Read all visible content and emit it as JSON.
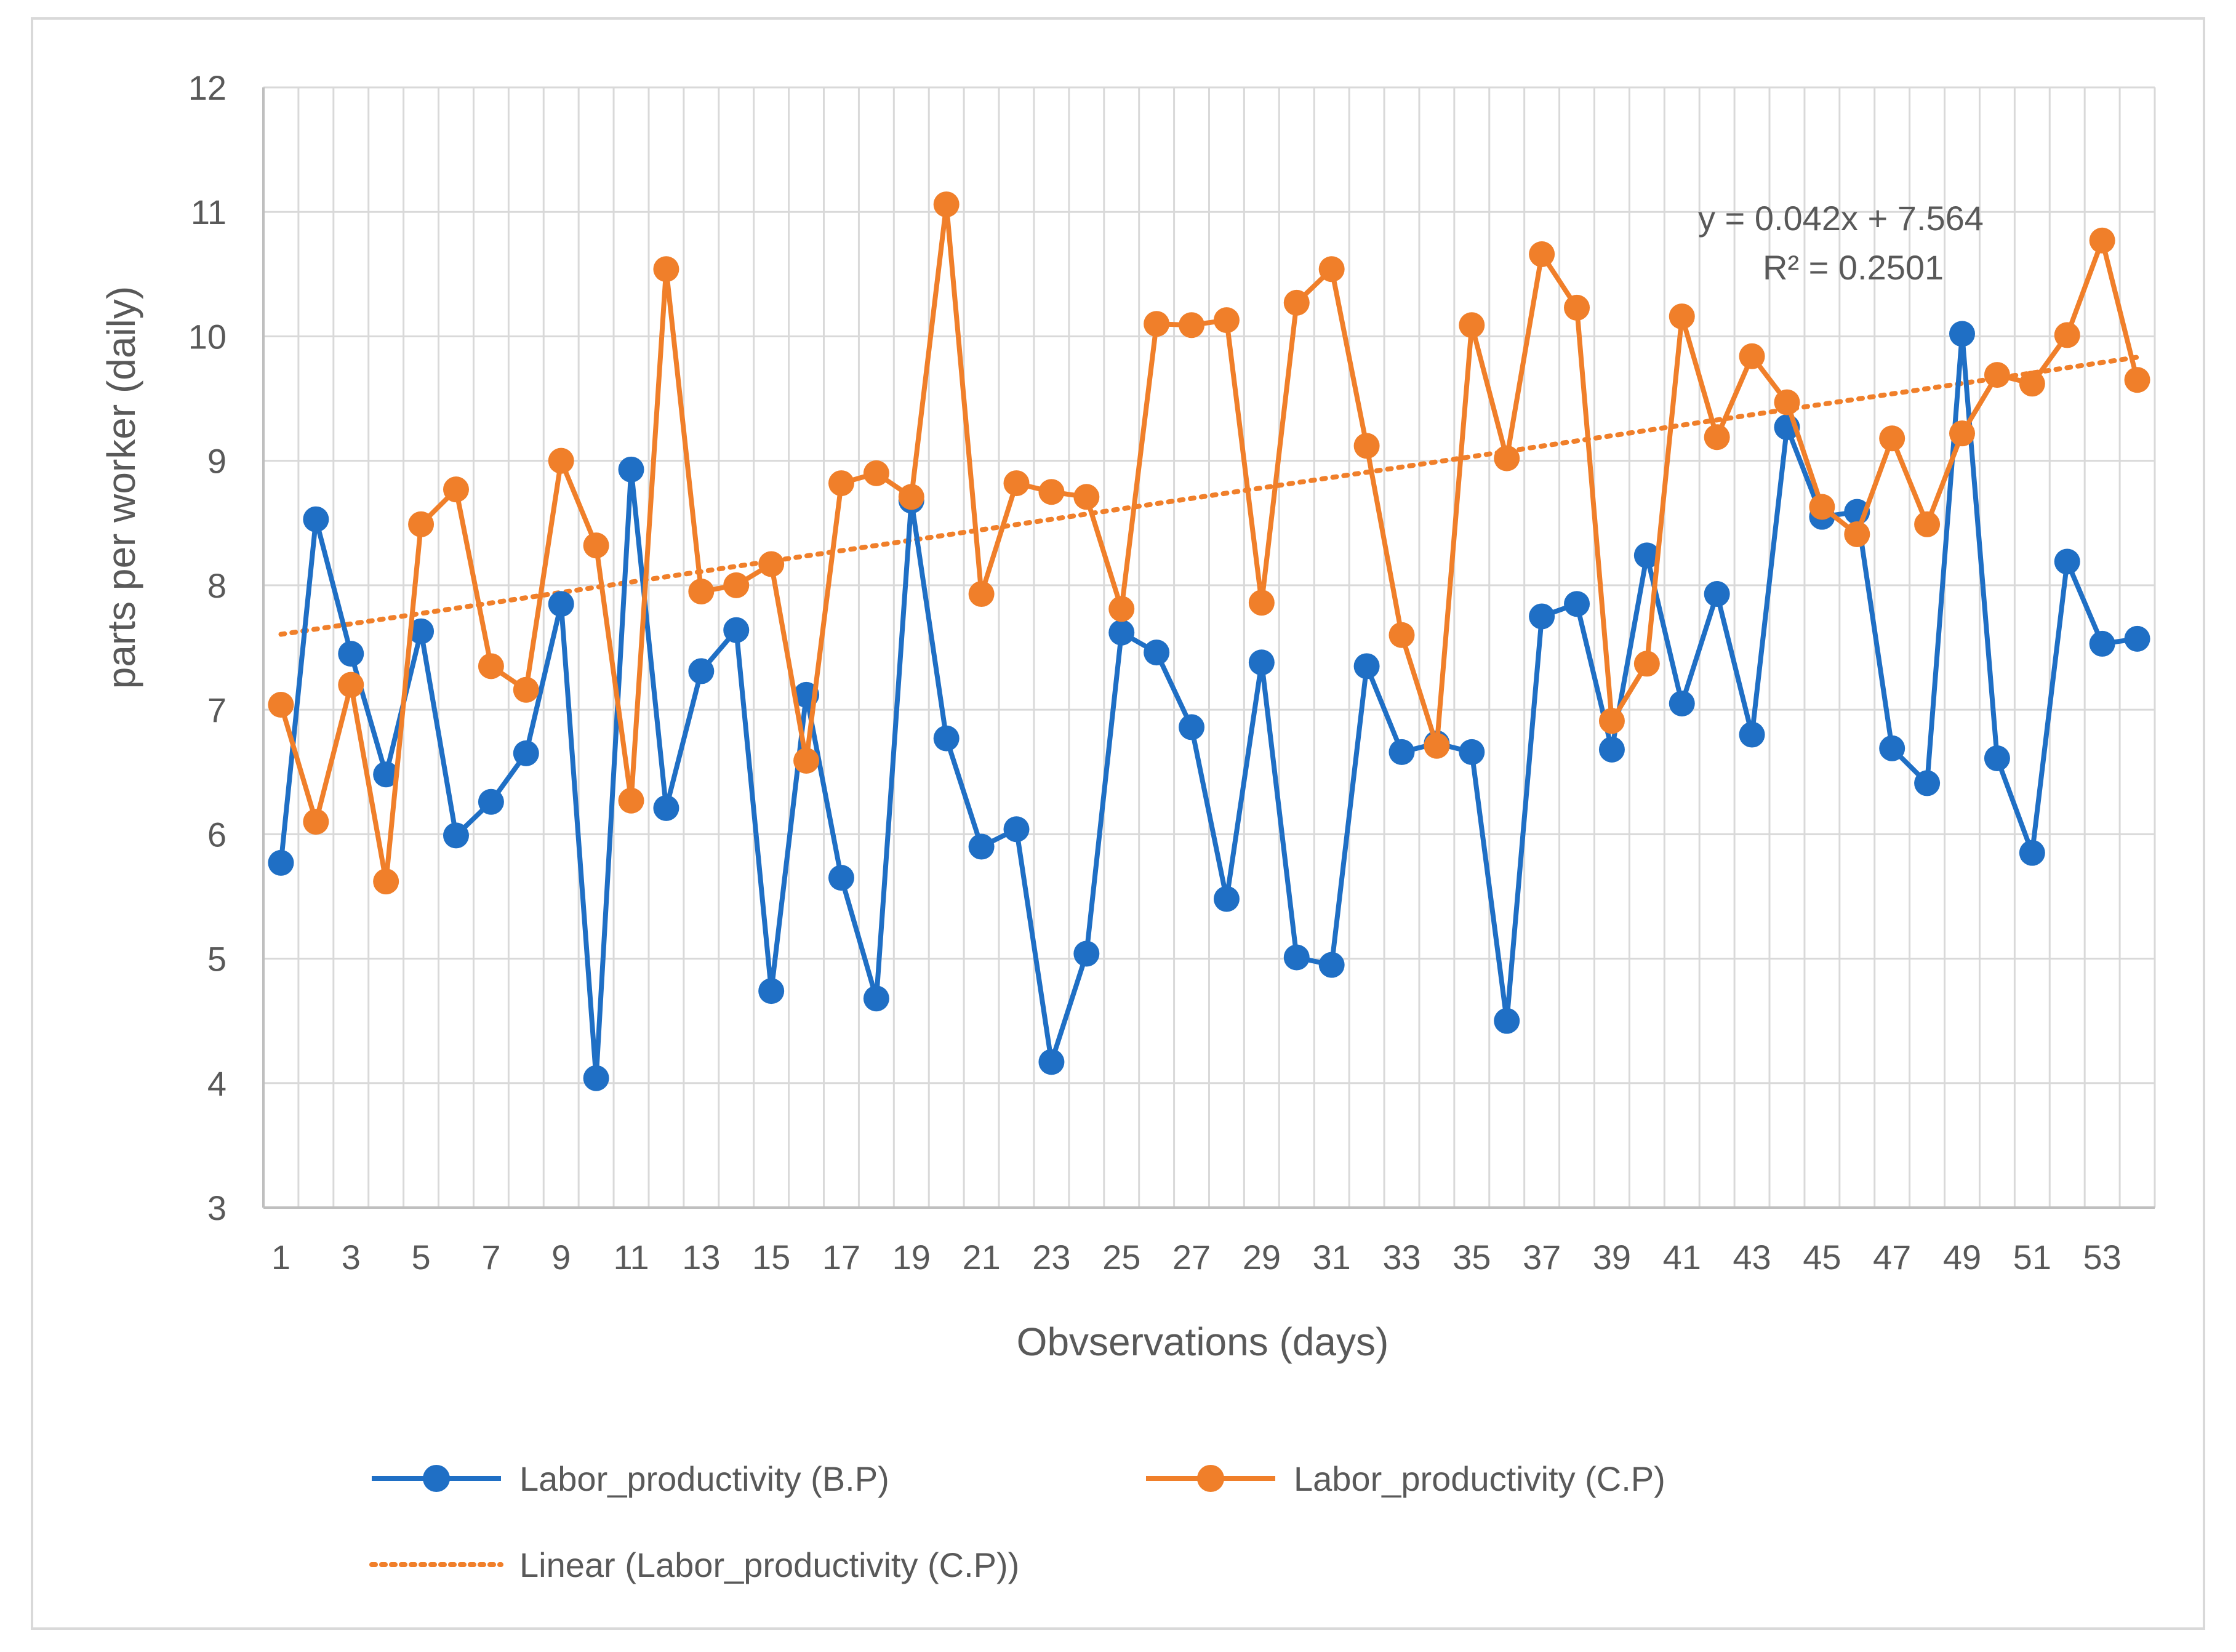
{
  "chart_data": {
    "type": "line",
    "title": "",
    "xlabel": "Obvservations (days)",
    "ylabel": "parts per worker (daily)",
    "ylim": [
      3,
      12
    ],
    "yticks": [
      3,
      4,
      5,
      6,
      7,
      8,
      9,
      10,
      11,
      12
    ],
    "xlim": [
      1,
      54
    ],
    "x_tick_labels": [
      "1",
      "3",
      "5",
      "7",
      "9",
      "11",
      "13",
      "15",
      "17",
      "19",
      "21",
      "23",
      "25",
      "27",
      "29",
      "31",
      "33",
      "35",
      "37",
      "39",
      "41",
      "43",
      "45",
      "47",
      "49",
      "51",
      "53"
    ],
    "x": [
      1,
      2,
      3,
      4,
      5,
      6,
      7,
      8,
      9,
      10,
      11,
      12,
      13,
      14,
      15,
      16,
      17,
      18,
      19,
      20,
      21,
      22,
      23,
      24,
      25,
      26,
      27,
      28,
      29,
      30,
      31,
      32,
      33,
      34,
      35,
      36,
      37,
      38,
      39,
      40,
      41,
      42,
      43,
      44,
      45,
      46,
      47,
      48,
      49,
      50,
      51,
      52,
      53,
      54
    ],
    "series": [
      {
        "name": "Labor_productivity (B.P)",
        "color": "#1f6fc5",
        "values": [
          5.77,
          8.53,
          7.45,
          6.48,
          7.63,
          5.99,
          6.26,
          6.65,
          7.85,
          4.04,
          8.93,
          6.21,
          7.31,
          7.64,
          4.74,
          7.12,
          5.65,
          4.68,
          8.68,
          6.77,
          5.9,
          6.04,
          4.17,
          5.04,
          7.62,
          7.46,
          6.86,
          5.48,
          7.38,
          5.01,
          4.95,
          7.35,
          6.66,
          6.73,
          6.66,
          4.5,
          7.75,
          7.85,
          6.68,
          8.24,
          7.05,
          7.93,
          6.8,
          9.27,
          8.55,
          8.59,
          6.69,
          6.41,
          10.02,
          6.61,
          5.85,
          8.19,
          7.53,
          7.57
        ]
      },
      {
        "name": "Labor_productivity (C.P)",
        "color": "#f07f2a",
        "values": [
          7.04,
          6.1,
          7.2,
          5.62,
          8.49,
          8.77,
          7.35,
          7.16,
          9.0,
          8.32,
          6.27,
          10.54,
          7.95,
          8.0,
          8.17,
          6.59,
          8.82,
          8.9,
          8.71,
          11.06,
          7.93,
          8.82,
          8.75,
          8.71,
          7.81,
          10.1,
          10.09,
          10.13,
          7.86,
          10.27,
          10.54,
          9.12,
          7.6,
          6.71,
          10.09,
          9.02,
          10.66,
          10.23,
          6.91,
          7.37,
          10.16,
          9.19,
          9.84,
          9.47,
          8.63,
          8.41,
          9.18,
          8.49,
          9.22,
          9.69,
          9.62,
          10.01,
          10.77,
          9.65
        ]
      }
    ],
    "trendline": {
      "name": "Linear (Labor_productivity (C.P))",
      "series_ref": "Labor_productivity (C.P)",
      "slope": 0.042,
      "intercept": 7.564,
      "color": "#f07f2a",
      "equation_text": "y = 0.042x + 7.564",
      "r2_text": "R² = 0.2501"
    },
    "legend": {
      "placement": "bottom",
      "entries": [
        "Labor_productivity (B.P)",
        "Labor_productivity (C.P)",
        "Linear (Labor_productivity (C.P))"
      ]
    },
    "grid": true
  }
}
